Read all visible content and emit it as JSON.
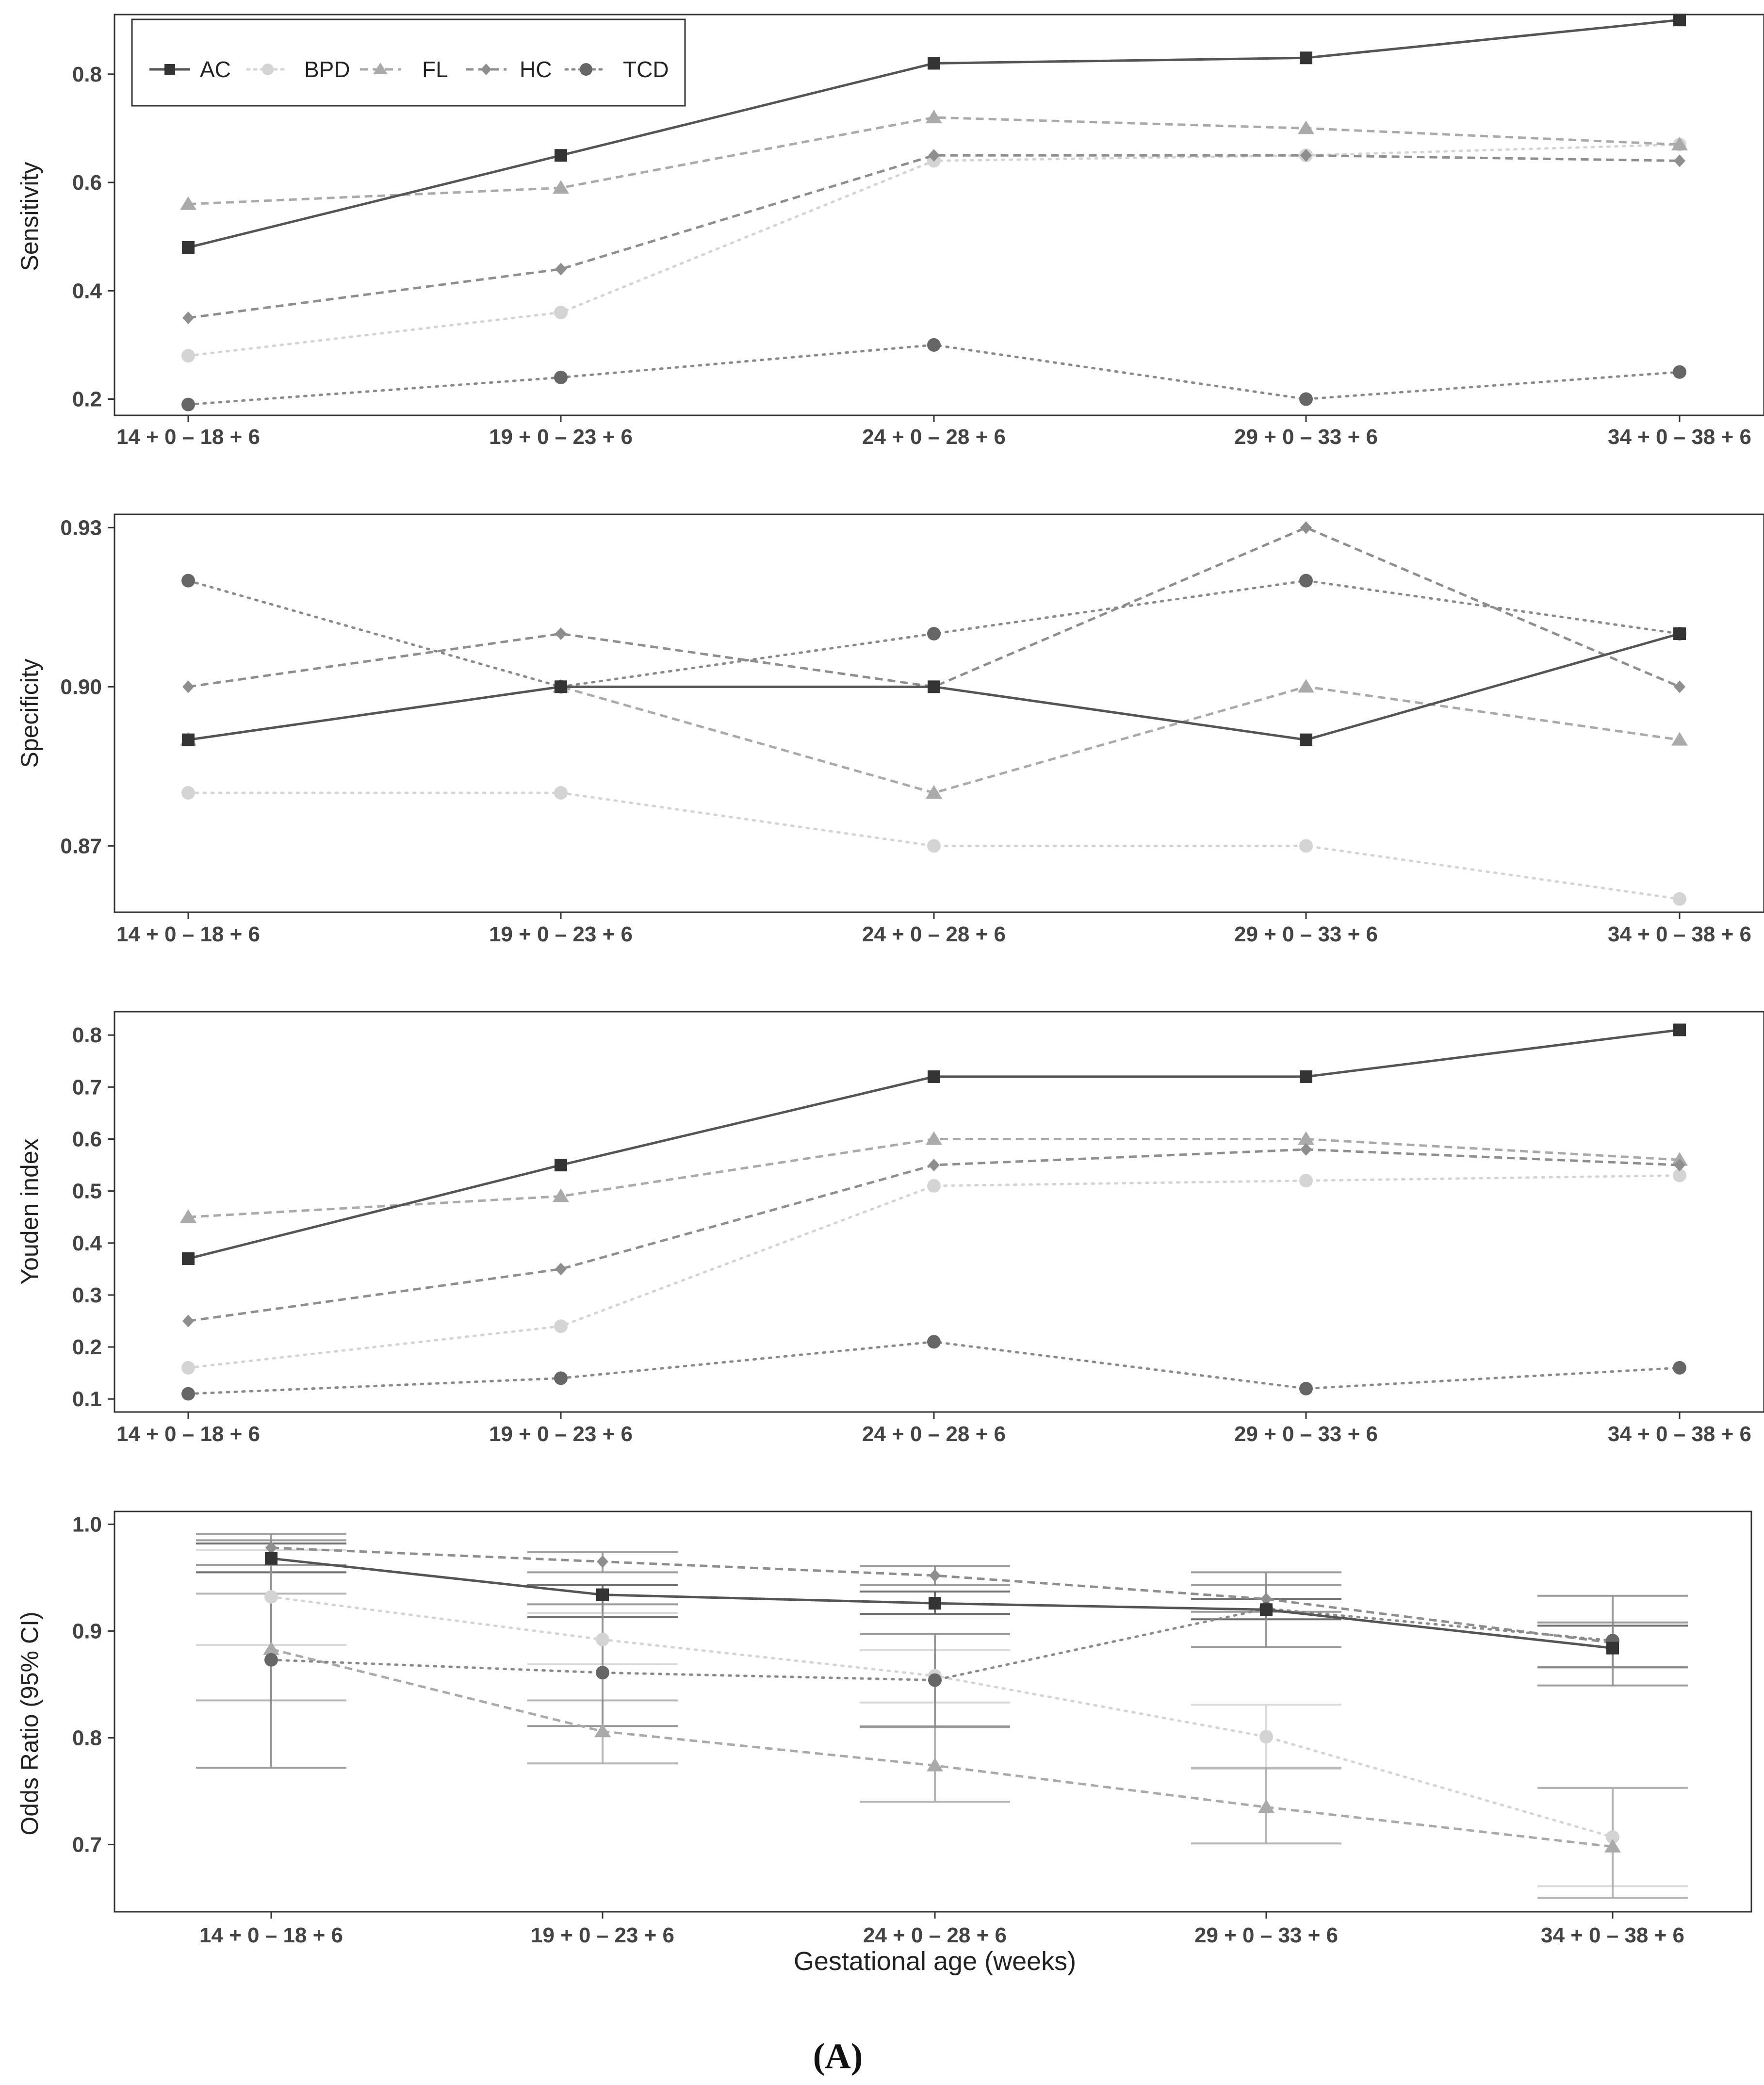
{
  "figure_label": "(A)",
  "legend": {
    "placement": "top-left of first panel",
    "entries": [
      "AC",
      "BPD",
      "FL",
      "HC",
      "TCD"
    ]
  },
  "series_styles": {
    "AC": {
      "color": "#555555",
      "dash": "solid",
      "marker": "square"
    },
    "BPD": {
      "color": "#d4d4d4",
      "dash": "dotted",
      "marker": "circle"
    },
    "FL": {
      "color": "#aaaaaa",
      "dash": "dashed",
      "marker": "triangle"
    },
    "HC": {
      "color": "#8e8e8e",
      "dash": "dashed",
      "marker": "diamond"
    },
    "TCD": {
      "color": "#8a8a8a",
      "dash": "dotted",
      "marker": "circle"
    }
  },
  "chart_data": [
    {
      "type": "line",
      "ylabel": "Sensitivity",
      "xlabel": "",
      "categories": [
        "14 + 0 – 18 + 6",
        "19 + 0 – 23 + 6",
        "24 + 0 – 28 + 6",
        "29 + 0 – 33 + 6",
        "34 + 0 – 38 + 6"
      ],
      "ylim": [
        0.17,
        0.91
      ],
      "yticks": [
        "0.2",
        "0.4",
        "0.6",
        "0.8"
      ],
      "series": [
        {
          "name": "AC",
          "values": [
            0.48,
            0.65,
            0.82,
            0.83,
            0.9
          ]
        },
        {
          "name": "BPD",
          "values": [
            0.28,
            0.36,
            0.64,
            0.65,
            0.67
          ]
        },
        {
          "name": "FL",
          "values": [
            0.56,
            0.59,
            0.72,
            0.7,
            0.67
          ]
        },
        {
          "name": "HC",
          "values": [
            0.35,
            0.44,
            0.65,
            0.65,
            0.64
          ]
        },
        {
          "name": "TCD",
          "values": [
            0.19,
            0.24,
            0.3,
            0.2,
            0.25
          ]
        }
      ]
    },
    {
      "type": "line",
      "ylabel": "Specificity",
      "xlabel": "",
      "categories": [
        "14 + 0 – 18 + 6",
        "19 + 0 – 23 + 6",
        "24 + 0 – 28 + 6",
        "29 + 0 – 33 + 6",
        "34 + 0 – 38 + 6"
      ],
      "ylim": [
        0.8575,
        0.9325
      ],
      "yticks": [
        "0.87",
        "0.90",
        "0.93"
      ],
      "series": [
        {
          "name": "AC",
          "values": [
            0.89,
            0.9,
            0.9,
            0.89,
            0.91
          ]
        },
        {
          "name": "BPD",
          "values": [
            0.88,
            0.88,
            0.87,
            0.87,
            0.86
          ]
        },
        {
          "name": "FL",
          "values": [
            0.89,
            0.9,
            0.88,
            0.9,
            0.89
          ]
        },
        {
          "name": "HC",
          "values": [
            0.9,
            0.91,
            0.9,
            0.93,
            0.9
          ]
        },
        {
          "name": "TCD",
          "values": [
            0.92,
            0.9,
            0.91,
            0.92,
            0.91
          ]
        }
      ]
    },
    {
      "type": "line",
      "ylabel": "Youden index",
      "xlabel": "",
      "categories": [
        "14 + 0 – 18 + 6",
        "19 + 0 – 23 + 6",
        "24 + 0 – 28 + 6",
        "29 + 0 – 33 + 6",
        "34 + 0 – 38 + 6"
      ],
      "ylim": [
        0.075,
        0.845
      ],
      "yticks": [
        "0.1",
        "0.2",
        "0.3",
        "0.4",
        "0.5",
        "0.6",
        "0.7",
        "0.8"
      ],
      "series": [
        {
          "name": "AC",
          "values": [
            0.37,
            0.55,
            0.72,
            0.72,
            0.81
          ]
        },
        {
          "name": "BPD",
          "values": [
            0.16,
            0.24,
            0.51,
            0.52,
            0.53
          ]
        },
        {
          "name": "FL",
          "values": [
            0.45,
            0.49,
            0.6,
            0.6,
            0.56
          ]
        },
        {
          "name": "HC",
          "values": [
            0.25,
            0.35,
            0.55,
            0.58,
            0.55
          ]
        },
        {
          "name": "TCD",
          "values": [
            0.11,
            0.14,
            0.21,
            0.12,
            0.16
          ]
        }
      ]
    },
    {
      "type": "line",
      "ylabel": "Odds Ratio (95% CI)",
      "xlabel": "Gestational age (weeks)",
      "categories": [
        "14 + 0 – 18 + 6",
        "19 + 0 – 23 + 6",
        "24 + 0 – 28 + 6",
        "29 + 0 – 33 + 6",
        "34 + 0 – 38 + 6"
      ],
      "ylim": [
        0.637,
        1.012
      ],
      "yticks": [
        "0.7",
        "0.8",
        "0.9",
        "1.0"
      ],
      "series": [
        {
          "name": "AC",
          "values": [
            0.968,
            0.934,
            0.926,
            0.92,
            0.884
          ],
          "ci_low": [
            0.955,
            0.913,
            0.916,
            0.911,
            0.866
          ],
          "ci_high": [
            0.982,
            0.943,
            0.937,
            0.93,
            0.905
          ]
        },
        {
          "name": "BPD",
          "values": [
            0.932,
            0.892,
            0.858,
            0.801,
            0.707
          ],
          "ci_low": [
            0.887,
            0.869,
            0.833,
            0.771,
            0.661
          ],
          "ci_high": [
            0.976,
            0.917,
            0.882,
            0.831,
            0.753
          ]
        },
        {
          "name": "FL",
          "values": [
            0.883,
            0.806,
            0.774,
            0.735,
            0.698
          ],
          "ci_low": [
            0.835,
            0.776,
            0.74,
            0.701,
            0.65
          ],
          "ci_high": [
            0.935,
            0.835,
            0.811,
            0.772,
            0.753
          ]
        },
        {
          "name": "HC",
          "values": [
            0.978,
            0.965,
            0.952,
            0.93,
            0.889
          ],
          "ci_low": [
            0.962,
            0.955,
            0.943,
            0.918,
            0.866
          ],
          "ci_high": [
            0.991,
            0.974,
            0.961,
            0.943,
            0.908
          ]
        },
        {
          "name": "TCD",
          "values": [
            0.873,
            0.861,
            0.854,
            0.921,
            0.891
          ],
          "ci_low": [
            0.772,
            0.811,
            0.81,
            0.885,
            0.849
          ],
          "ci_high": [
            0.985,
            0.925,
            0.897,
            0.955,
            0.933
          ]
        }
      ]
    }
  ]
}
